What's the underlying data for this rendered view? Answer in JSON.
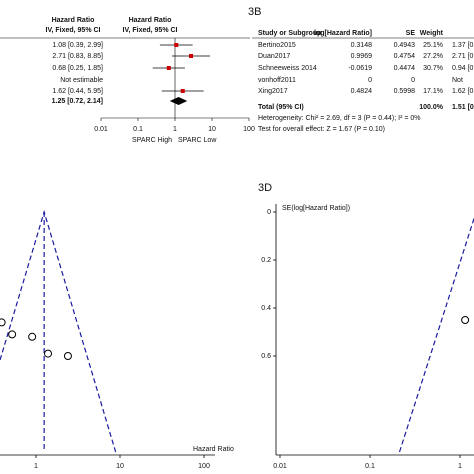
{
  "chart_data": [
    {
      "type": "forest",
      "header": [
        "Hazard Ratio",
        "IV, Fixed, 95% CI"
      ],
      "plot_header": [
        "Hazard Ratio",
        "IV, Fixed, 95% CI"
      ],
      "rows": [
        {
          "hr": 1.08,
          "lo": 0.39,
          "hi": 2.99,
          "label": "1.08 [0.39, 2.99]"
        },
        {
          "hr": 2.71,
          "lo": 0.83,
          "hi": 8.85,
          "label": "2.71 [0.83, 8.85]"
        },
        {
          "hr": 0.68,
          "lo": 0.25,
          "hi": 1.85,
          "label": "0.68 [0.25, 1.85]"
        },
        {
          "label": "Not estimable"
        },
        {
          "hr": 1.62,
          "lo": 0.44,
          "hi": 5.95,
          "label": "1.62 [0.44, 5.95]"
        }
      ],
      "total": {
        "hr": 1.25,
        "lo": 0.72,
        "hi": 2.14,
        "label": "1.25 [0.72, 2.14]"
      },
      "xlim": [
        0.01,
        100
      ],
      "xticks": [
        0.01,
        0.1,
        1,
        10,
        100
      ],
      "log_x": true,
      "favours": [
        "SPARC High",
        "SPARC Low"
      ],
      "color": "#cc0000"
    },
    {
      "type": "scatter",
      "log_x": true,
      "xlabel": "Hazard Ratio",
      "x": [
        0.39,
        0.52,
        0.9,
        1.39,
        2.4
      ],
      "y": [
        0.46,
        0.51,
        0.52,
        0.59,
        0.6
      ],
      "pooled": 1.25,
      "xlim": [
        0.1,
        100
      ],
      "xticks": [
        1,
        10,
        100
      ],
      "ylim": [
        0,
        1
      ]
    },
    {
      "type": "scatter",
      "log_x": true,
      "panel": "3D",
      "ylabel": "SE(log[Hazard Ratio])",
      "x": [
        1.14
      ],
      "y": [
        0.45
      ],
      "pooled": 1.51,
      "xlim": [
        0.01,
        100
      ],
      "xticks": [
        0.01,
        0.1,
        1
      ],
      "ylim": [
        0,
        1
      ],
      "yticks": [
        0,
        0.2,
        0.4,
        0.6
      ]
    }
  ],
  "table_b": {
    "panel": "3B",
    "header": [
      "Study or Subgroup",
      "log[Hazard Ratio]",
      "SE",
      "Weight"
    ],
    "rows": [
      [
        "Bertino2015",
        "0.3148",
        "0.4943",
        "25.1%",
        "1.37 [0"
      ],
      [
        "Duan2017",
        "0.9969",
        "0.4754",
        "27.2%",
        "2.71 [0"
      ],
      [
        "Schneeweiss 2014",
        "-0.0619",
        "0.4474",
        "30.7%",
        "0.94 [0"
      ],
      [
        "vonhoff2011",
        "0",
        "0",
        "",
        "Not"
      ],
      [
        "Xing2017",
        "0.4824",
        "0.5998",
        "17.1%",
        "1.62 [0"
      ]
    ],
    "total": [
      "Total (95% CI)",
      "100.0%",
      "1.51 [0"
    ],
    "heterogeneity": "Heterogeneity: Chi² = 2.69, df = 3 (P = 0.44); I² = 0%",
    "overall": "Test for overall effect: Z = 1.67 (P = 0.10)"
  }
}
